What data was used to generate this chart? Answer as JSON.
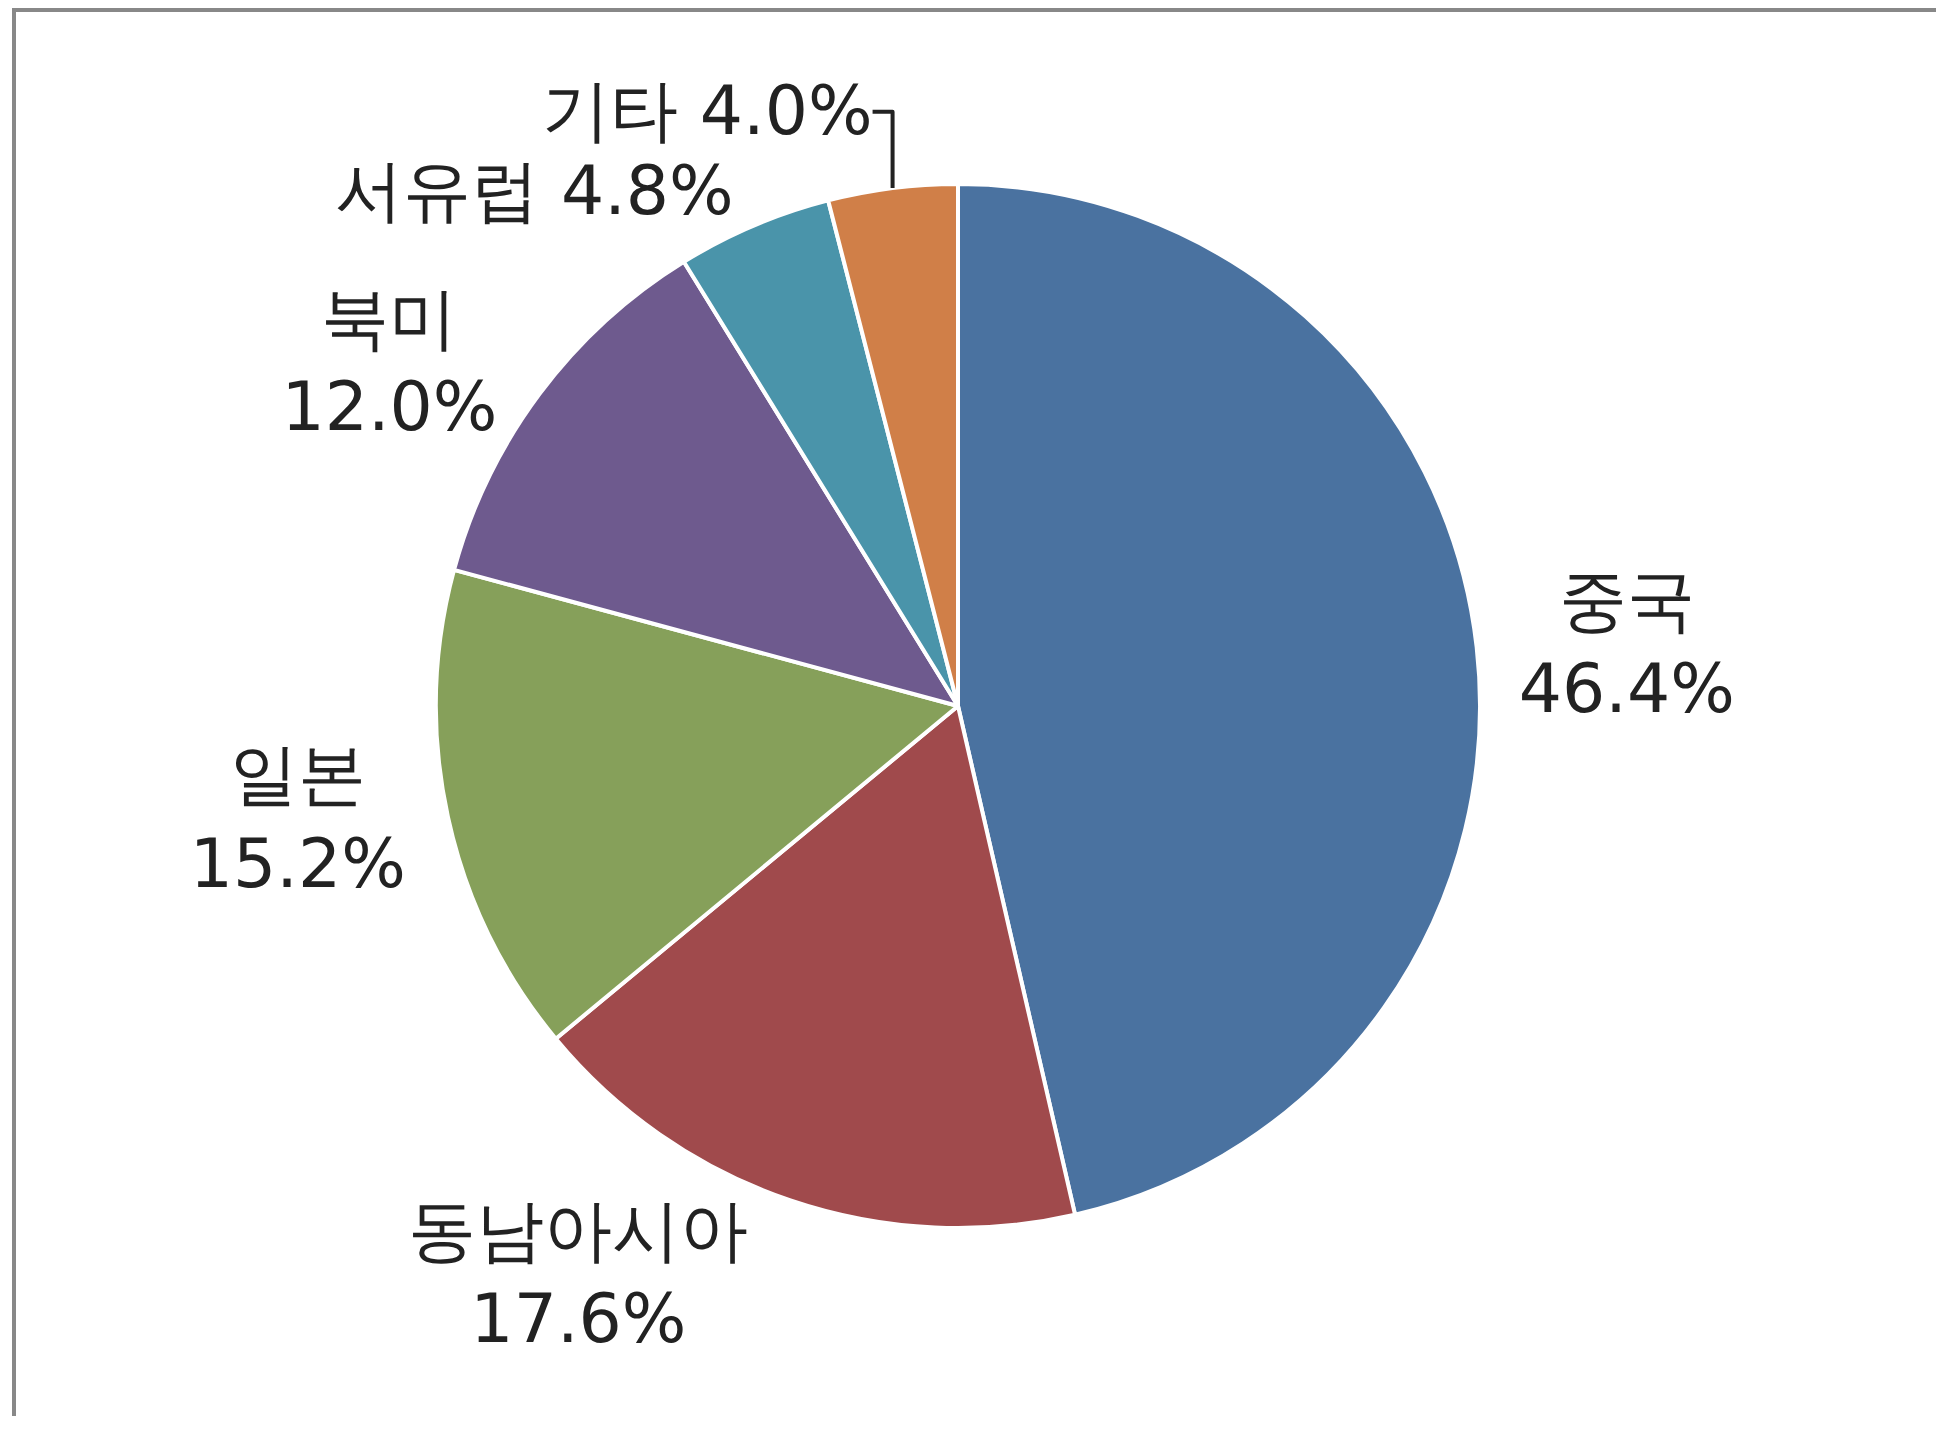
{
  "chart_data": {
    "type": "pie",
    "categories": [
      "중국",
      "동남아시아",
      "일본",
      "북미",
      "서유럽",
      "기타"
    ],
    "values": [
      46.4,
      17.6,
      15.2,
      12.0,
      4.8,
      4.0
    ],
    "value_labels": [
      "46.4%",
      "17.6%",
      "15.2%",
      "12.0%",
      "4.8%",
      "4.0%"
    ],
    "colors": [
      "#4a72a0",
      "#a04a4c",
      "#86a05a",
      "#6e5a8e",
      "#4a94aa",
      "#d07f48"
    ]
  }
}
